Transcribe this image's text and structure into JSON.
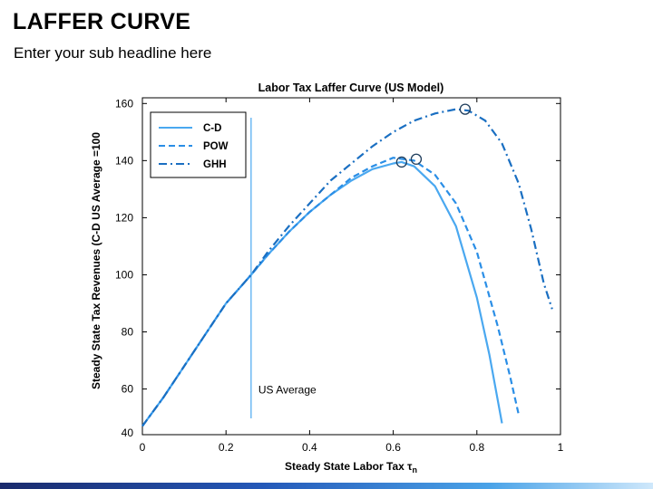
{
  "slide": {
    "title": "LAFFER CURVE",
    "subtitle": "Enter your sub headline here"
  },
  "chart_data": {
    "type": "line",
    "title": "Labor Tax Laffer Curve (US Model)",
    "xlabel": "Steady State Labor Tax τ",
    "xlabel_subscript": "n",
    "ylabel": "Steady State Tax Revenues (C-D US Average =100",
    "xlim": [
      0,
      1
    ],
    "ylim": [
      44,
      162
    ],
    "xticks": [
      0,
      0.2,
      0.4,
      0.6,
      0.8,
      1
    ],
    "xtick_labels": [
      "0",
      "0.2",
      "0.4",
      "0.6",
      "0.8",
      "1"
    ],
    "yticks": [
      40,
      60,
      80,
      100,
      120,
      140,
      160
    ],
    "ytick_labels": [
      "40",
      "60",
      "80",
      "100",
      "120",
      "140",
      "160"
    ],
    "grid": false,
    "legend_position": "top-left",
    "colors": {
      "cd": "#4aa8f0",
      "pow": "#2a8ee6",
      "ghh": "#1a6fc2",
      "us_average_line": "#4aa8f0",
      "marker": "#1f3d5c"
    },
    "series": [
      {
        "name": "C-D",
        "style": "solid",
        "x": [
          0,
          0.05,
          0.1,
          0.15,
          0.2,
          0.26,
          0.3,
          0.35,
          0.4,
          0.45,
          0.5,
          0.55,
          0.6,
          0.62,
          0.65,
          0.7,
          0.75,
          0.8,
          0.83,
          0.86
        ],
        "y": [
          47,
          57,
          68,
          79,
          90,
          100,
          107,
          115,
          122,
          128,
          133,
          137,
          139,
          139.5,
          138,
          131,
          117,
          92,
          72,
          48
        ],
        "peak": {
          "x": 0.62,
          "y": 139.5
        }
      },
      {
        "name": "POW",
        "style": "dashed",
        "x": [
          0,
          0.05,
          0.1,
          0.15,
          0.2,
          0.26,
          0.3,
          0.35,
          0.4,
          0.45,
          0.5,
          0.55,
          0.6,
          0.65,
          0.7,
          0.75,
          0.8,
          0.85,
          0.88,
          0.9
        ],
        "y": [
          47,
          57,
          68,
          79,
          90,
          100,
          107,
          115,
          122,
          128,
          134,
          138,
          141,
          140,
          135,
          125,
          108,
          82,
          64,
          51
        ],
        "peak": {
          "x": 0.655,
          "y": 140.5
        }
      },
      {
        "name": "GHH",
        "style": "dashdot",
        "x": [
          0,
          0.05,
          0.1,
          0.15,
          0.2,
          0.26,
          0.3,
          0.35,
          0.4,
          0.45,
          0.5,
          0.55,
          0.6,
          0.65,
          0.7,
          0.75,
          0.78,
          0.82,
          0.86,
          0.9,
          0.93,
          0.96,
          0.98
        ],
        "y": [
          47,
          57,
          68,
          79,
          90,
          100,
          108,
          117,
          125,
          133,
          139,
          145,
          150,
          154,
          156.5,
          158,
          157.5,
          154,
          146,
          132,
          116,
          97,
          88
        ],
        "peak": {
          "x": 0.772,
          "y": 158
        }
      }
    ],
    "annotations": [
      {
        "text": "US Average",
        "x": 0.26
      }
    ]
  }
}
